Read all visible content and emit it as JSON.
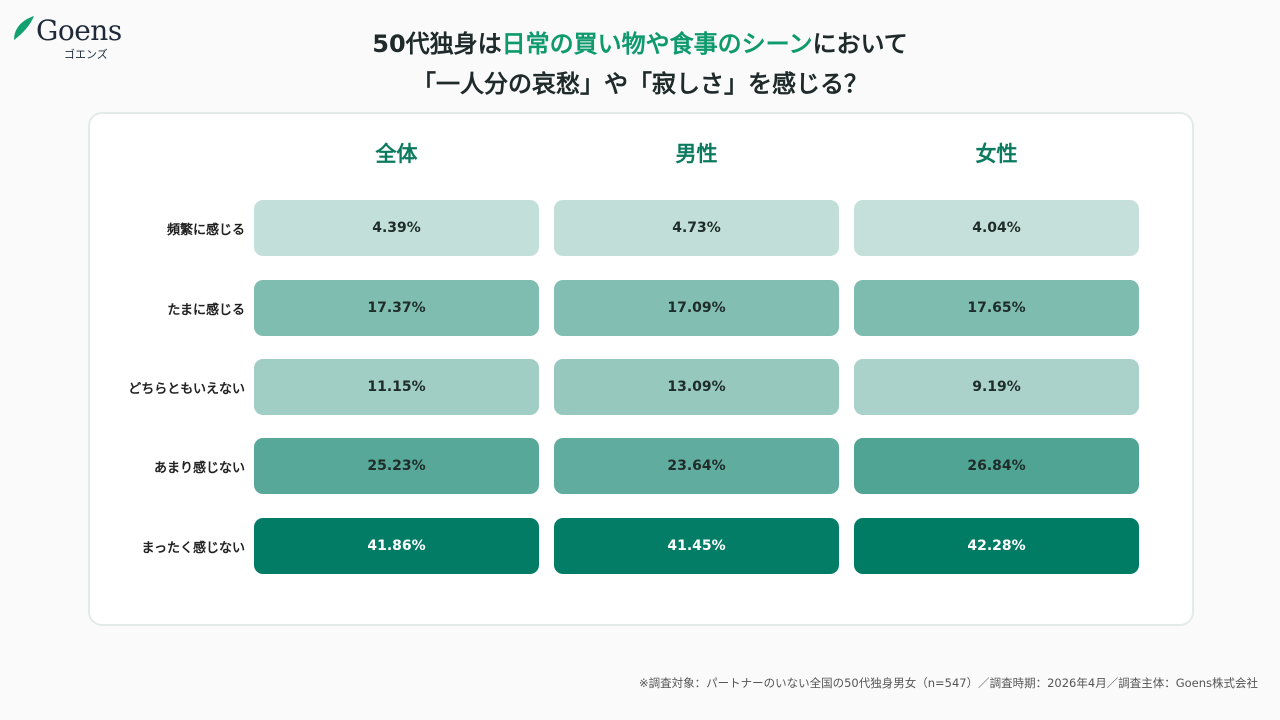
{
  "logo": {
    "word": "Goens",
    "kana": "ゴエンズ"
  },
  "title": {
    "line1_pre": "50代独身は",
    "line1_hl": "日常の買い物や食事のシーン",
    "line1_post": "において",
    "line2": "「一人分の哀愁」や「寂しさ」を感じる？"
  },
  "colors": {
    "accent": "#0e9a6c",
    "light": "#c5e0da",
    "dark": "#007b64"
  },
  "chart_data": {
    "type": "heatmap",
    "columns": [
      "全体",
      "男性",
      "女性"
    ],
    "rows": [
      "頻繁に感じる",
      "たまに感じる",
      "どちらともいえない",
      "あまり感じない",
      "まったく感じない"
    ],
    "values": [
      [
        4.39,
        4.73,
        4.04
      ],
      [
        17.37,
        17.09,
        17.65
      ],
      [
        11.15,
        13.09,
        9.19
      ],
      [
        25.23,
        23.64,
        26.84
      ],
      [
        41.86,
        41.45,
        42.28
      ]
    ],
    "labels": [
      [
        "4.39%",
        "4.73%",
        "4.04%"
      ],
      [
        "17.37%",
        "17.09%",
        "17.65%"
      ],
      [
        "11.15%",
        "13.09%",
        "9.19%"
      ],
      [
        "25.23%",
        "23.64%",
        "26.84%"
      ],
      [
        "41.86%",
        "41.45%",
        "42.28%"
      ]
    ],
    "unit": "%"
  },
  "footnote": "※調査対象：パートナーのいない全国の50代独身男女（n=547）／調査時期：2026年4月／調査主体：Goens株式会社"
}
